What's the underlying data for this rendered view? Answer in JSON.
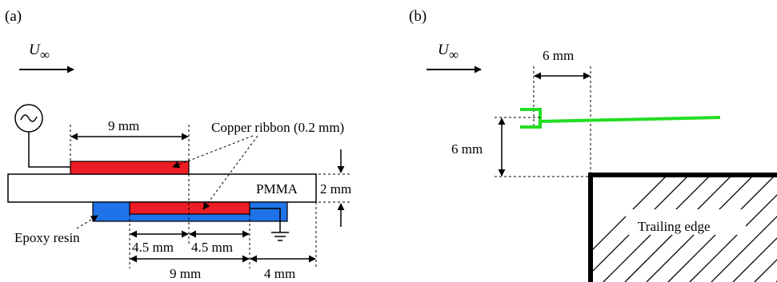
{
  "panel_a": {
    "label": "(a)",
    "freestream": {
      "symbol": "U",
      "subscript": "∞"
    },
    "dims": {
      "top_electrode_width": "9 mm",
      "thickness": "2 mm",
      "bottom_half_left": "4.5 mm",
      "bottom_half_right": "4.5 mm",
      "bottom_electrode_width": "9 mm",
      "overlap": "4 mm"
    },
    "labels": {
      "copper": "Copper ribbon (0.2 mm)",
      "pmma": "PMMA",
      "epoxy": "Epoxy resin"
    },
    "colors": {
      "copper": "#ee1c24",
      "epoxy": "#1e73e8",
      "pmma": "#ffffff"
    }
  },
  "panel_b": {
    "label": "(b)",
    "freestream": {
      "symbol": "U",
      "subscript": "∞"
    },
    "dims": {
      "horizontal": "6 mm",
      "vertical": "6 mm"
    },
    "labels": {
      "trailing_edge": "Trailing edge"
    },
    "colors": {
      "actuator": "#22dd22"
    }
  }
}
